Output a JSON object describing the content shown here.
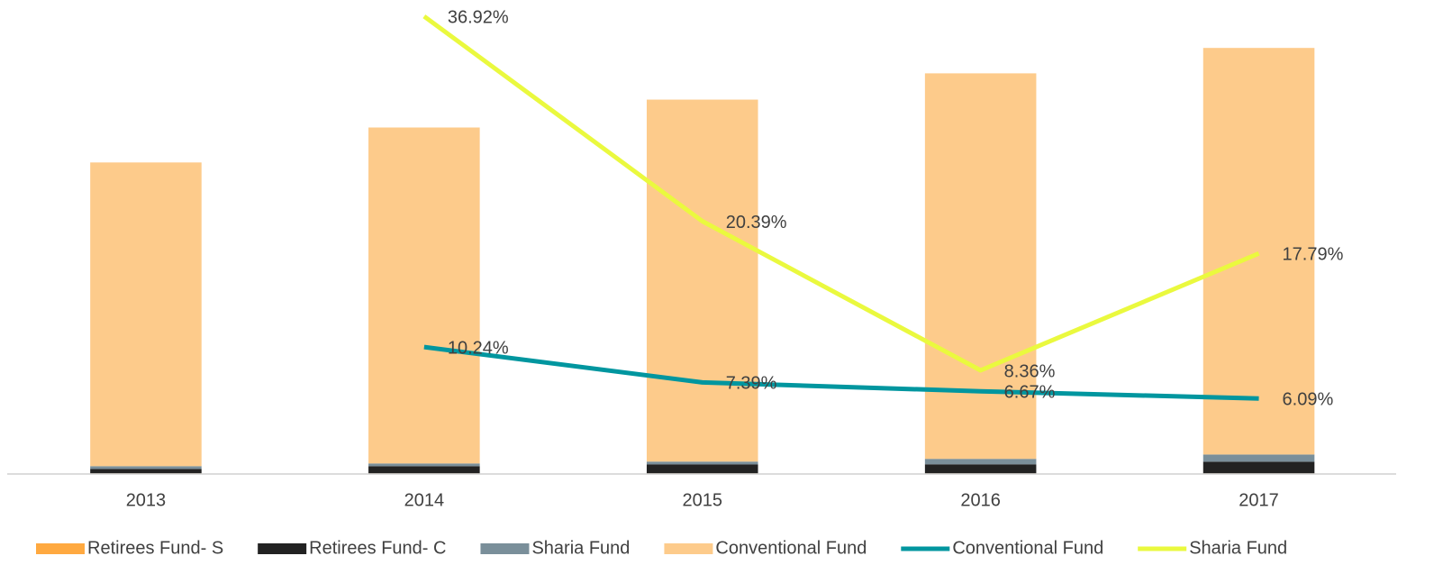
{
  "chart_data": {
    "type": "bar",
    "stacked": true,
    "categories": [
      "2013",
      "2014",
      "2015",
      "2016",
      "2017"
    ],
    "ylim": [
      0,
      37
    ],
    "series": [
      {
        "name": "Retirees Fund- S",
        "type": "bar",
        "color": "#ffa940",
        "values": [
          0.05,
          0.05,
          0.05,
          0.05,
          0.05
        ]
      },
      {
        "name": "Retirees Fund- C",
        "type": "bar",
        "color": "#222222",
        "values": [
          0.36,
          0.58,
          0.73,
          0.73,
          0.94
        ]
      },
      {
        "name": "Sharia Fund",
        "type": "bar",
        "color": "#7a8f9a",
        "values": [
          0.22,
          0.22,
          0.22,
          0.44,
          0.58
        ]
      },
      {
        "name": "Conventional Fund",
        "type": "bar",
        "color": "#fdcb8b",
        "values": [
          24.5,
          27.1,
          29.2,
          31.1,
          32.8
        ]
      },
      {
        "name": "Conventional Fund",
        "type": "line",
        "color": "#00969f",
        "values": [
          null,
          10.24,
          7.39,
          6.67,
          6.09
        ],
        "value_labels": [
          null,
          "10.24%",
          "7.39%",
          "6.67%",
          "6.09%"
        ]
      },
      {
        "name": "Sharia Fund",
        "type": "line",
        "color": "#eaf93e",
        "values": [
          null,
          36.92,
          20.39,
          8.36,
          17.79
        ],
        "value_labels": [
          null,
          "36.92%",
          "20.39%",
          "8.36%",
          "17.79%"
        ]
      }
    ]
  }
}
